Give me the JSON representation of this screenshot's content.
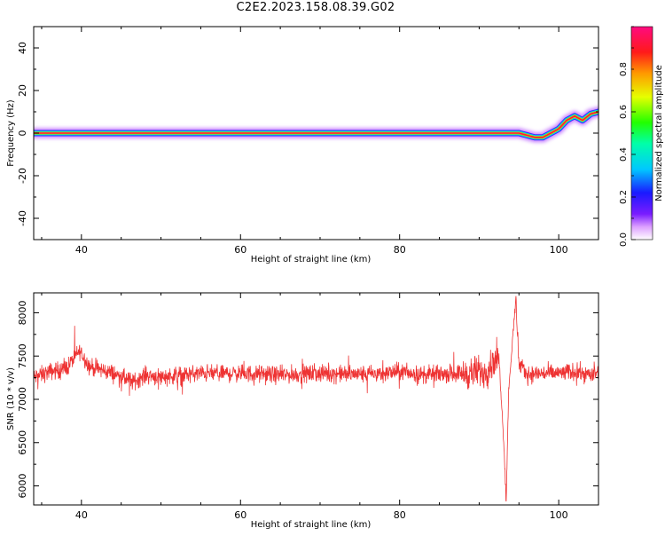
{
  "figure_title": "C2E2.2023.158.08.39.G02",
  "chart_data": [
    {
      "type": "heatmap",
      "title": "",
      "xlabel": "Height of straight line (km)",
      "ylabel": "Frequency (Hz)",
      "xlim": [
        34,
        105
      ],
      "ylim": [
        -50,
        50
      ],
      "xticks": [
        40,
        60,
        80,
        100
      ],
      "yticks": [
        -40,
        -20,
        0,
        20,
        40
      ],
      "grid": false,
      "colormap": "rainbow (purple-blue-cyan-green-yellow-red-magenta)",
      "ridge": {
        "x": [
          34,
          35,
          40,
          50,
          60,
          70,
          80,
          85,
          90,
          93,
          95,
          96,
          97,
          98,
          99,
          100,
          101,
          102,
          103,
          104,
          105
        ],
        "frequency": [
          0,
          0,
          0,
          0,
          0,
          0,
          0,
          0,
          0,
          0,
          0,
          -1,
          -2,
          -2,
          0,
          2,
          6,
          8,
          6,
          9,
          10
        ]
      },
      "colorbar": {
        "label": "Normalized spectral amplitude",
        "range": [
          0.0,
          1.0
        ],
        "ticks": [
          0.0,
          0.2,
          0.4,
          0.6,
          0.8
        ]
      }
    },
    {
      "type": "line",
      "title": "",
      "xlabel": "Height of straight line (km)",
      "ylabel": "SNR (10 * v/v)",
      "xlim": [
        34,
        105
      ],
      "ylim": [
        5780,
        8230
      ],
      "xticks": [
        40,
        60,
        80,
        100
      ],
      "yticks": [
        6000,
        6500,
        7000,
        7500,
        8000
      ],
      "grid": false,
      "series": [
        {
          "color": "#ee3333",
          "x": [
            34,
            36,
            38,
            39.8,
            41,
            44,
            46.5,
            48,
            50,
            55,
            60,
            65,
            70,
            75,
            78,
            80,
            83,
            86,
            89,
            91,
            92,
            92.5,
            92.8,
            93.1,
            93.4,
            93.7,
            94.2,
            94.6,
            95,
            96,
            98,
            100,
            102,
            104,
            105
          ],
          "values": [
            7250,
            7320,
            7350,
            7560,
            7380,
            7300,
            7200,
            7280,
            7260,
            7300,
            7300,
            7280,
            7300,
            7290,
            7300,
            7320,
            7280,
            7300,
            7300,
            7330,
            7480,
            7450,
            7000,
            6500,
            5820,
            7100,
            7680,
            8170,
            7400,
            7290,
            7300,
            7300,
            7320,
            7280,
            7300
          ]
        }
      ]
    }
  ]
}
